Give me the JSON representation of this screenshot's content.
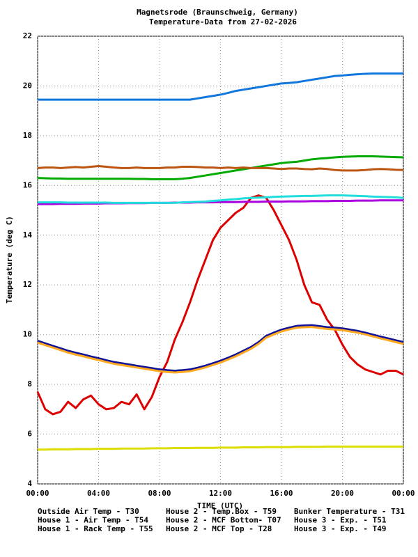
{
  "chart_data": {
    "type": "line",
    "title": "Magnetsrode (Braunschweig, Germany)",
    "subtitle": "Temperature-Data from 27-02-2026",
    "x_label": "TIME (UTC)",
    "y_label": "Temperature (deg C)",
    "xlim": [
      0,
      24
    ],
    "xticks": [
      {
        "value": 0,
        "label": "00:00"
      },
      {
        "value": 4,
        "label": "04:00"
      },
      {
        "value": 8,
        "label": "08:00"
      },
      {
        "value": 12,
        "label": "12:00"
      },
      {
        "value": 16,
        "label": "16:00"
      },
      {
        "value": 20,
        "label": "20:00"
      },
      {
        "value": 24,
        "label": "00:00"
      }
    ],
    "ylim": [
      4,
      22
    ],
    "yticks": [
      4,
      6,
      8,
      10,
      12,
      14,
      16,
      18,
      20,
      22
    ],
    "grid": true,
    "x": [
      0,
      0.5,
      1,
      1.5,
      2,
      2.5,
      3,
      3.5,
      4,
      4.5,
      5,
      5.5,
      6,
      6.5,
      7,
      7.5,
      8,
      8.5,
      9,
      9.5,
      10,
      10.5,
      11,
      11.5,
      12,
      12.5,
      13,
      13.5,
      14,
      14.5,
      15,
      15.5,
      16,
      16.5,
      17,
      17.5,
      18,
      18.5,
      19,
      19.5,
      20,
      20.5,
      21,
      21.5,
      22,
      22.5,
      23,
      23.5,
      24
    ],
    "series": [
      {
        "name": "Outside Air Temp - T30",
        "color": "#dd0000",
        "values": [
          7.7,
          7.0,
          6.8,
          6.9,
          7.3,
          7.05,
          7.4,
          7.55,
          7.2,
          7.0,
          7.05,
          7.3,
          7.2,
          7.6,
          7.0,
          7.5,
          8.3,
          8.9,
          9.8,
          10.5,
          11.3,
          12.2,
          13.0,
          13.8,
          14.3,
          14.6,
          14.9,
          15.1,
          15.5,
          15.6,
          15.5,
          15.0,
          14.4,
          13.8,
          13.0,
          12.0,
          11.3,
          11.2,
          10.6,
          10.2,
          9.6,
          9.1,
          8.8,
          8.6,
          8.5,
          8.4,
          8.55,
          8.55,
          8.4
        ]
      },
      {
        "name": "House 1 - Air Temp - T54",
        "color": "#00aa00",
        "values": [
          16.3,
          16.29,
          16.28,
          16.28,
          16.27,
          16.27,
          16.27,
          16.27,
          16.27,
          16.27,
          16.27,
          16.27,
          16.27,
          16.26,
          16.26,
          16.25,
          16.25,
          16.25,
          16.25,
          16.27,
          16.3,
          16.35,
          16.4,
          16.45,
          16.5,
          16.55,
          16.6,
          16.65,
          16.7,
          16.75,
          16.8,
          16.85,
          16.9,
          16.93,
          16.95,
          17.0,
          17.05,
          17.08,
          17.1,
          17.13,
          17.15,
          17.16,
          17.17,
          17.17,
          17.17,
          17.16,
          17.15,
          17.14,
          17.13
        ]
      },
      {
        "name": "House 1 - Rack Temp - T55",
        "color": "#1177dd",
        "values": [
          19.45,
          19.45,
          19.45,
          19.45,
          19.45,
          19.45,
          19.45,
          19.45,
          19.45,
          19.45,
          19.45,
          19.45,
          19.45,
          19.45,
          19.45,
          19.45,
          19.45,
          19.45,
          19.45,
          19.45,
          19.45,
          19.5,
          19.55,
          19.6,
          19.65,
          19.72,
          19.8,
          19.85,
          19.9,
          19.95,
          20.0,
          20.05,
          20.1,
          20.12,
          20.15,
          20.2,
          20.25,
          20.3,
          20.35,
          20.4,
          20.42,
          20.45,
          20.47,
          20.49,
          20.5,
          20.5,
          20.5,
          20.5,
          20.5
        ]
      },
      {
        "name": "House 2 - Temp.Box - T59",
        "color": "#aa00dd",
        "values": [
          15.25,
          15.25,
          15.25,
          15.26,
          15.26,
          15.26,
          15.27,
          15.27,
          15.27,
          15.28,
          15.28,
          15.28,
          15.29,
          15.29,
          15.29,
          15.3,
          15.3,
          15.3,
          15.31,
          15.31,
          15.31,
          15.32,
          15.32,
          15.32,
          15.33,
          15.33,
          15.33,
          15.34,
          15.34,
          15.34,
          15.35,
          15.35,
          15.35,
          15.36,
          15.36,
          15.36,
          15.37,
          15.37,
          15.37,
          15.38,
          15.38,
          15.38,
          15.39,
          15.39,
          15.39,
          15.4,
          15.4,
          15.4,
          15.4
        ]
      },
      {
        "name": "House 2 - MCF Bottom- T07",
        "color": "#22dddd",
        "values": [
          15.32,
          15.32,
          15.32,
          15.32,
          15.31,
          15.31,
          15.31,
          15.31,
          15.31,
          15.31,
          15.3,
          15.3,
          15.3,
          15.3,
          15.3,
          15.3,
          15.3,
          15.3,
          15.3,
          15.32,
          15.33,
          15.34,
          15.35,
          15.38,
          15.4,
          15.43,
          15.45,
          15.48,
          15.5,
          15.51,
          15.52,
          15.54,
          15.55,
          15.56,
          15.57,
          15.58,
          15.58,
          15.59,
          15.6,
          15.6,
          15.6,
          15.59,
          15.58,
          15.57,
          15.55,
          15.54,
          15.53,
          15.52,
          15.5
        ]
      },
      {
        "name": "House 2 - MCF Top - T28",
        "color": "#bb5511",
        "values": [
          16.7,
          16.72,
          16.72,
          16.7,
          16.72,
          16.74,
          16.72,
          16.75,
          16.78,
          16.75,
          16.72,
          16.7,
          16.7,
          16.72,
          16.7,
          16.7,
          16.7,
          16.72,
          16.72,
          16.75,
          16.75,
          16.74,
          16.72,
          16.72,
          16.7,
          16.72,
          16.7,
          16.72,
          16.7,
          16.7,
          16.7,
          16.68,
          16.66,
          16.68,
          16.68,
          16.66,
          16.65,
          16.68,
          16.66,
          16.62,
          16.6,
          16.6,
          16.6,
          16.62,
          16.65,
          16.66,
          16.65,
          16.63,
          16.62
        ]
      },
      {
        "name": "Bunker Temperature - T31",
        "color": "#dddd00",
        "values": [
          5.38,
          5.38,
          5.39,
          5.39,
          5.39,
          5.4,
          5.4,
          5.4,
          5.41,
          5.41,
          5.41,
          5.42,
          5.42,
          5.42,
          5.42,
          5.43,
          5.43,
          5.43,
          5.44,
          5.44,
          5.44,
          5.45,
          5.45,
          5.45,
          5.46,
          5.46,
          5.46,
          5.47,
          5.47,
          5.47,
          5.48,
          5.48,
          5.48,
          5.48,
          5.49,
          5.49,
          5.49,
          5.49,
          5.5,
          5.5,
          5.5,
          5.5,
          5.5,
          5.5,
          5.5,
          5.5,
          5.5,
          5.5,
          5.5
        ]
      },
      {
        "name": "House 3 - Exp. - T51",
        "color": "#111199",
        "values": [
          9.75,
          9.65,
          9.55,
          9.45,
          9.35,
          9.27,
          9.2,
          9.12,
          9.05,
          8.97,
          8.9,
          8.85,
          8.8,
          8.75,
          8.7,
          8.65,
          8.6,
          8.57,
          8.55,
          8.57,
          8.6,
          8.67,
          8.75,
          8.85,
          8.95,
          9.07,
          9.2,
          9.35,
          9.5,
          9.7,
          9.95,
          10.08,
          10.2,
          10.28,
          10.35,
          10.37,
          10.38,
          10.34,
          10.3,
          10.28,
          10.25,
          10.2,
          10.15,
          10.08,
          10.0,
          9.92,
          9.85,
          9.77,
          9.7
        ]
      },
      {
        "name": "House 3 - Exp. - T49",
        "color": "#ffaa22",
        "values": [
          9.68,
          9.58,
          9.48,
          9.38,
          9.28,
          9.2,
          9.13,
          9.05,
          8.98,
          8.9,
          8.83,
          8.78,
          8.73,
          8.68,
          8.63,
          8.58,
          8.53,
          8.5,
          8.48,
          8.5,
          8.53,
          8.6,
          8.68,
          8.78,
          8.88,
          9.0,
          9.13,
          9.28,
          9.43,
          9.63,
          9.88,
          10.01,
          10.13,
          10.21,
          10.28,
          10.3,
          10.31,
          10.27,
          10.23,
          10.21,
          10.18,
          10.13,
          10.08,
          10.01,
          9.93,
          9.85,
          9.78,
          9.7,
          9.63
        ]
      }
    ]
  }
}
